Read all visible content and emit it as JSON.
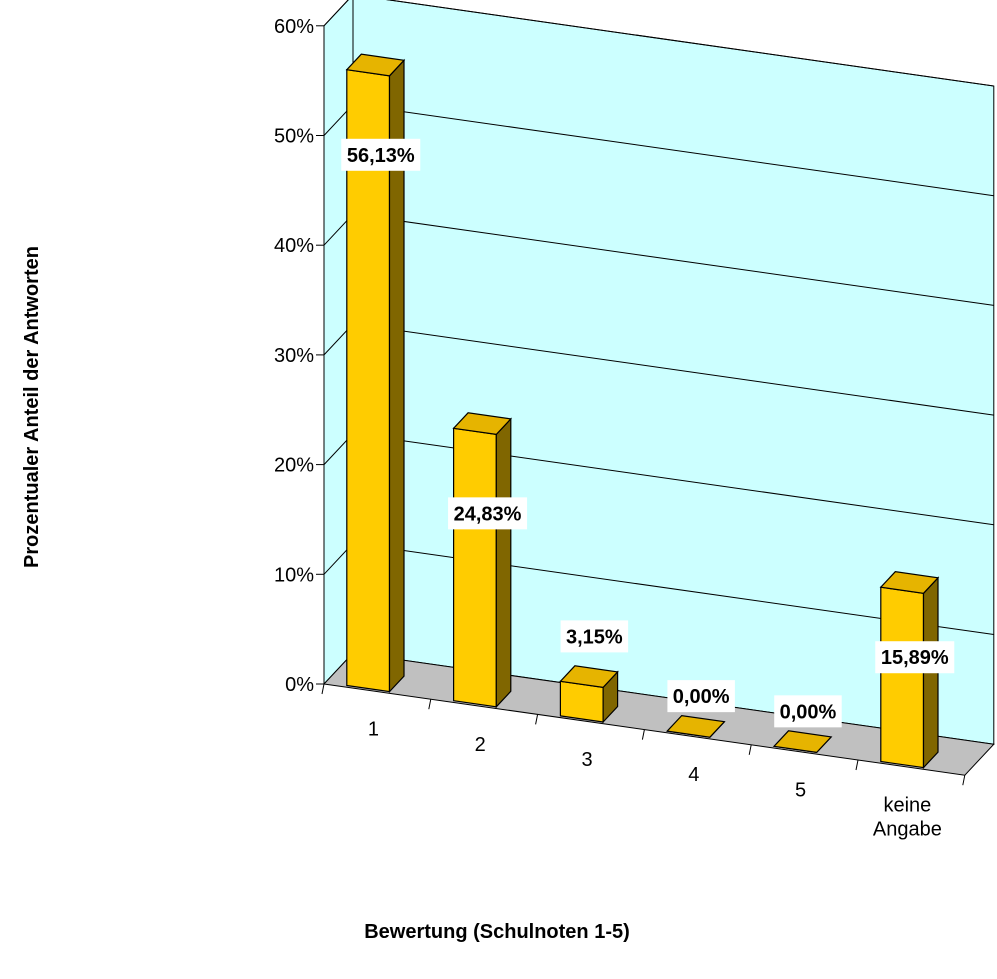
{
  "chart_data": {
    "type": "bar",
    "categories": [
      "1",
      "2",
      "3",
      "4",
      "5",
      "keine Angabe"
    ],
    "values": [
      56.13,
      24.83,
      3.15,
      0.0,
      0.0,
      15.89
    ],
    "data_labels": [
      "56,13%",
      "24,83%",
      "3,15%",
      "0,00%",
      "0,00%",
      "15,89%"
    ],
    "xlabel": "Bewertung (Schulnoten 1-5)",
    "ylabel": "Prozentualer Anteil der Antworten",
    "ylim": [
      0,
      60
    ],
    "yticks": [
      "0%",
      "10%",
      "20%",
      "30%",
      "40%",
      "50%",
      "60%"
    ],
    "grid": true,
    "legend": "none",
    "style": "3d-column"
  },
  "colors": {
    "plot_background": "#ccffff",
    "floor": "#c0c0c0",
    "bar_front": "#ffcc00",
    "bar_top": "#e6b400",
    "bar_side": "#806600",
    "gridline": "#000000",
    "label_background": "#ffffff"
  }
}
